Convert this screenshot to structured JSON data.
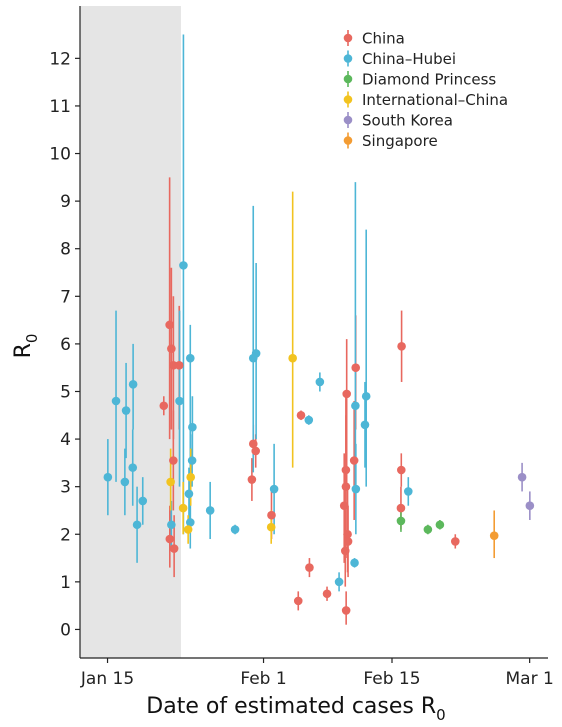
{
  "chart_data": {
    "type": "scatter",
    "title": "",
    "xlabel": "Date of estimated cases R",
    "xlabel_subscript": "0",
    "ylabel": "R",
    "ylabel_subscript": "0",
    "x_ticks": [
      {
        "date": "2020-01-15",
        "label": "Jan 15"
      },
      {
        "date": "2020-02-01",
        "label": "Feb 1"
      },
      {
        "date": "2020-02-15",
        "label": "Feb 15"
      },
      {
        "date": "2020-03-01",
        "label": "Mar 1"
      }
    ],
    "xlim": [
      "2020-01-12",
      "2020-03-03"
    ],
    "ylim": [
      -0.6,
      13.1
    ],
    "y_ticks": [
      0,
      1,
      2,
      3,
      4,
      5,
      6,
      7,
      8,
      9,
      10,
      11,
      12
    ],
    "grid": false,
    "legend_position": "top-right",
    "shaded_region": {
      "start": "2020-01-12",
      "end": "2020-01-23",
      "color": "#e5e5e5"
    },
    "series": [
      {
        "name": "China",
        "color": "#e8685f",
        "points": [
          {
            "x": "2020-01-21",
            "y": 4.7,
            "low": 4.5,
            "high": 4.9
          },
          {
            "x": "2020-01-22",
            "y": 6.4,
            "low": 4.0,
            "high": 9.5
          },
          {
            "x": "2020-01-22",
            "y": 5.9,
            "low": 4.2,
            "high": 7.6
          },
          {
            "x": "2020-01-22",
            "y": 5.55,
            "low": 4.0,
            "high": 7.0
          },
          {
            "x": "2020-01-23",
            "y": 5.55,
            "low": 4.2,
            "high": 6.8
          },
          {
            "x": "2020-01-22",
            "y": 3.55,
            "low": 2.5,
            "high": 4.6
          },
          {
            "x": "2020-01-22",
            "y": 1.9,
            "low": 1.3,
            "high": 2.6
          },
          {
            "x": "2020-01-22",
            "y": 1.7,
            "low": 1.1,
            "high": 2.4
          },
          {
            "x": "2020-01-31",
            "y": 3.9,
            "low": 3.6,
            "high": 4.3
          },
          {
            "x": "2020-01-31",
            "y": 3.75,
            "low": 3.4,
            "high": 4.1
          },
          {
            "x": "2020-01-31",
            "y": 3.15,
            "low": 2.7,
            "high": 3.6
          },
          {
            "x": "2020-02-02",
            "y": 2.4,
            "low": 1.9,
            "high": 2.9
          },
          {
            "x": "2020-02-05",
            "y": 4.5,
            "low": 4.4,
            "high": 4.6
          },
          {
            "x": "2020-02-06",
            "y": 1.3,
            "low": 1.1,
            "high": 1.5
          },
          {
            "x": "2020-02-05",
            "y": 0.6,
            "low": 0.4,
            "high": 0.8
          },
          {
            "x": "2020-02-08",
            "y": 0.75,
            "low": 0.6,
            "high": 0.9
          },
          {
            "x": "2020-02-10",
            "y": 4.95,
            "low": 3.0,
            "high": 6.1
          },
          {
            "x": "2020-02-10",
            "y": 3.35,
            "low": 1.8,
            "high": 4.9
          },
          {
            "x": "2020-02-10",
            "y": 3.0,
            "low": 1.5,
            "high": 4.5
          },
          {
            "x": "2020-02-10",
            "y": 2.6,
            "low": 1.4,
            "high": 3.7
          },
          {
            "x": "2020-02-10",
            "y": 2.0,
            "low": 1.2,
            "high": 3.0
          },
          {
            "x": "2020-02-10",
            "y": 1.85,
            "low": 1.1,
            "high": 2.6
          },
          {
            "x": "2020-02-10",
            "y": 1.65,
            "low": 0.9,
            "high": 2.5
          },
          {
            "x": "2020-02-10",
            "y": 0.4,
            "low": 0.1,
            "high": 0.8
          },
          {
            "x": "2020-02-11",
            "y": 5.5,
            "low": 4.2,
            "high": 6.6
          },
          {
            "x": "2020-02-11",
            "y": 3.55,
            "low": 2.3,
            "high": 4.8
          },
          {
            "x": "2020-02-16",
            "y": 5.95,
            "low": 5.2,
            "high": 6.7
          },
          {
            "x": "2020-02-16",
            "y": 3.35,
            "low": 3.0,
            "high": 3.7
          },
          {
            "x": "2020-02-16",
            "y": 2.55,
            "low": 2.1,
            "high": 3.0
          },
          {
            "x": "2020-02-22",
            "y": 1.85,
            "low": 1.7,
            "high": 2.0
          }
        ]
      },
      {
        "name": "China–Hubei",
        "color": "#4db6d6",
        "points": [
          {
            "x": "2020-01-15",
            "y": 3.2,
            "low": 2.4,
            "high": 4.0
          },
          {
            "x": "2020-01-16",
            "y": 4.8,
            "low": 3.1,
            "high": 6.7
          },
          {
            "x": "2020-01-17",
            "y": 3.1,
            "low": 2.4,
            "high": 3.8
          },
          {
            "x": "2020-01-17",
            "y": 4.6,
            "low": 3.6,
            "high": 5.6
          },
          {
            "x": "2020-01-18",
            "y": 5.15,
            "low": 4.2,
            "high": 6.0
          },
          {
            "x": "2020-01-18",
            "y": 3.4,
            "low": 2.6,
            "high": 4.2
          },
          {
            "x": "2020-01-18",
            "y": 2.2,
            "low": 1.4,
            "high": 3.0
          },
          {
            "x": "2020-01-19",
            "y": 2.7,
            "low": 2.2,
            "high": 3.2
          },
          {
            "x": "2020-01-22",
            "y": 2.2,
            "low": 1.7,
            "high": 2.7
          },
          {
            "x": "2020-01-23",
            "y": 7.65,
            "low": 2.0,
            "high": 12.5
          },
          {
            "x": "2020-01-23",
            "y": 4.8,
            "low": 3.0,
            "high": 6.7
          },
          {
            "x": "2020-01-24",
            "y": 5.7,
            "low": 2.3,
            "high": 6.4
          },
          {
            "x": "2020-01-24",
            "y": 4.25,
            "low": 3.6,
            "high": 4.9
          },
          {
            "x": "2020-01-24",
            "y": 3.55,
            "low": 3.0,
            "high": 4.1
          },
          {
            "x": "2020-01-24",
            "y": 2.85,
            "low": 2.3,
            "high": 3.4
          },
          {
            "x": "2020-01-24",
            "y": 2.25,
            "low": 1.7,
            "high": 2.8
          },
          {
            "x": "2020-01-26",
            "y": 2.5,
            "low": 1.9,
            "high": 3.1
          },
          {
            "x": "2020-01-29",
            "y": 2.1,
            "low": 2.0,
            "high": 2.2
          },
          {
            "x": "2020-01-31",
            "y": 5.8,
            "low": 4.0,
            "high": 7.7
          },
          {
            "x": "2020-01-31",
            "y": 5.7,
            "low": 3.3,
            "high": 8.9
          },
          {
            "x": "2020-02-02",
            "y": 2.95,
            "low": 2.0,
            "high": 3.9
          },
          {
            "x": "2020-02-06",
            "y": 4.4,
            "low": 4.3,
            "high": 4.5
          },
          {
            "x": "2020-02-07",
            "y": 5.2,
            "low": 5.0,
            "high": 5.4
          },
          {
            "x": "2020-02-09",
            "y": 1.0,
            "low": 0.8,
            "high": 1.2
          },
          {
            "x": "2020-02-11",
            "y": 4.7,
            "low": 3.0,
            "high": 9.4
          },
          {
            "x": "2020-02-11",
            "y": 2.95,
            "low": 2.0,
            "high": 3.9
          },
          {
            "x": "2020-02-11",
            "y": 1.4,
            "low": 1.3,
            "high": 1.5
          },
          {
            "x": "2020-02-12",
            "y": 4.9,
            "low": 3.0,
            "high": 8.4
          },
          {
            "x": "2020-02-12",
            "y": 4.3,
            "low": 3.4,
            "high": 5.2
          },
          {
            "x": "2020-02-17",
            "y": 2.9,
            "low": 2.6,
            "high": 3.2
          }
        ]
      },
      {
        "name": "Diamond Princess",
        "color": "#5cb85c",
        "points": [
          {
            "x": "2020-02-16",
            "y": 2.28,
            "low": 2.05,
            "high": 2.5
          },
          {
            "x": "2020-02-19",
            "y": 2.1,
            "low": 2.0,
            "high": 2.2
          },
          {
            "x": "2020-02-20",
            "y": 2.2,
            "low": 2.1,
            "high": 2.3
          }
        ]
      },
      {
        "name": "International–China",
        "color": "#f2c31f",
        "points": [
          {
            "x": "2020-01-22",
            "y": 3.1,
            "low": 2.5,
            "high": 3.8
          },
          {
            "x": "2020-01-23",
            "y": 2.55,
            "low": 2.0,
            "high": 3.1
          },
          {
            "x": "2020-01-24",
            "y": 3.2,
            "low": 2.6,
            "high": 3.8
          },
          {
            "x": "2020-01-24",
            "y": 2.1,
            "low": 1.8,
            "high": 2.4
          },
          {
            "x": "2020-02-02",
            "y": 2.15,
            "low": 1.8,
            "high": 2.5
          },
          {
            "x": "2020-02-04",
            "y": 5.7,
            "low": 3.4,
            "high": 9.2
          }
        ]
      },
      {
        "name": "South Korea",
        "color": "#9b8fc7",
        "points": [
          {
            "x": "2020-02-29",
            "y": 3.2,
            "low": 2.9,
            "high": 3.5
          },
          {
            "x": "2020-03-01",
            "y": 2.6,
            "low": 2.3,
            "high": 2.9
          }
        ]
      },
      {
        "name": "Singapore",
        "color": "#f39c33",
        "points": [
          {
            "x": "2020-02-26",
            "y": 1.97,
            "low": 1.5,
            "high": 2.5
          }
        ]
      }
    ]
  }
}
